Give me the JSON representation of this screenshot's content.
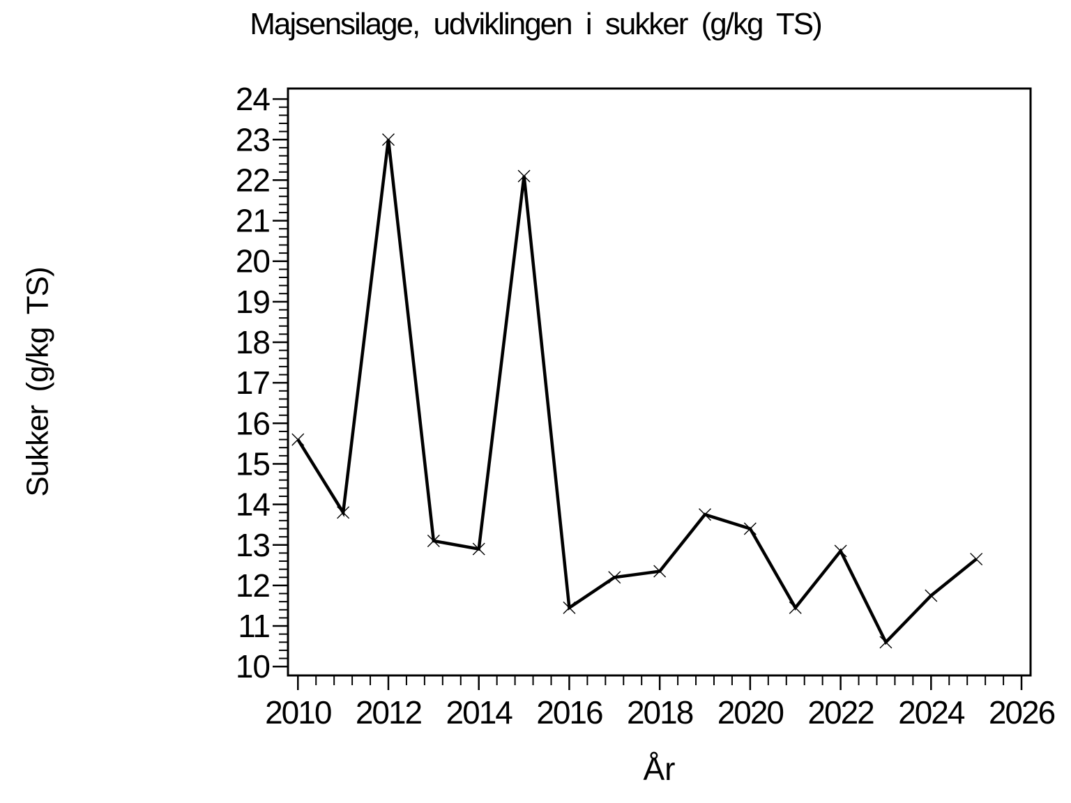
{
  "page": {
    "background": "#ffffff",
    "foreground": "#000000"
  },
  "chart_data": {
    "type": "line",
    "title": "Majsensilage, udviklingen i sukker (g/kg TS)",
    "xlabel": "År",
    "ylabel": "Sukker (g/kg TS)",
    "series": [
      {
        "name": "Sukker",
        "x": [
          2010,
          2011,
          2012,
          2013,
          2014,
          2015,
          2016,
          2017,
          2018,
          2019,
          2020,
          2021,
          2022,
          2023,
          2024,
          2025
        ],
        "values": [
          15.6,
          13.8,
          23.0,
          13.1,
          12.9,
          22.1,
          11.45,
          12.2,
          12.35,
          13.75,
          13.4,
          11.45,
          12.85,
          10.6,
          11.75,
          12.65
        ]
      }
    ],
    "marker": "x",
    "line_color": "#000000",
    "background": "#ffffff",
    "grid": false,
    "legend": null,
    "xlim": [
      2009.78,
      2026.2
    ],
    "ylim": [
      9.78,
      24.26
    ],
    "x_major_ticks": [
      2010,
      2012,
      2014,
      2016,
      2018,
      2020,
      2022,
      2024,
      2026
    ],
    "x_minor_interval": 0.4,
    "y_major_ticks": [
      10,
      11,
      12,
      13,
      14,
      15,
      16,
      17,
      18,
      19,
      20,
      21,
      22,
      23,
      24
    ],
    "y_minor_interval": 0.2
  }
}
